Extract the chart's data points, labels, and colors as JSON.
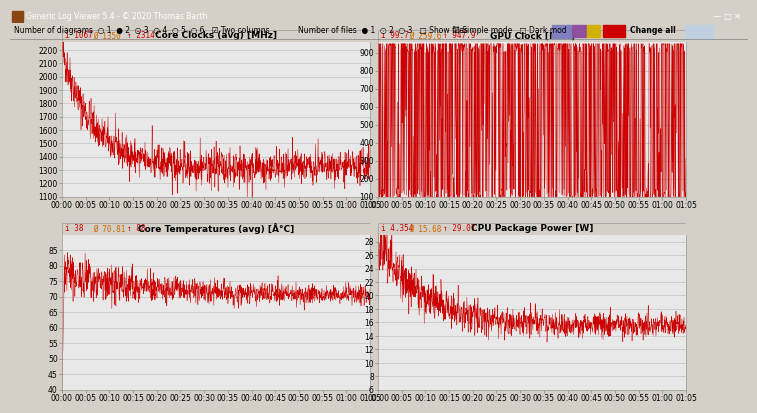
{
  "title_bar": "Generic Log Viewer 5.4 - © 2020 Thomas Barth",
  "plots": [
    {
      "title": "Core Clocks (avg) [MHz]",
      "stats_min": "i 1067",
      "stats_avg": "Ø 1350",
      "stats_max": "↑ 2314",
      "ylabel_ticks": [
        1100,
        1200,
        1300,
        1400,
        1500,
        1600,
        1700,
        1800,
        1900,
        2000,
        2100,
        2200
      ],
      "ymin": 1100,
      "ymax": 2260,
      "color": "#cc0000"
    },
    {
      "title": "GPU Clock [MHz]",
      "stats_min": "i 99.7",
      "stats_avg": "Ø 259.6",
      "stats_max": "↑ 947.9",
      "ylabel_ticks": [
        100,
        200,
        300,
        400,
        500,
        600,
        700,
        800,
        900
      ],
      "ymin": 100,
      "ymax": 960,
      "color": "#cc0000"
    },
    {
      "title": "Core Temperatures (avg) [Å°C]",
      "stats_min": "i 38",
      "stats_avg": "Ø 70.81",
      "stats_max": "↑ 88",
      "ylabel_ticks": [
        40,
        45,
        50,
        55,
        60,
        65,
        70,
        75,
        80,
        85
      ],
      "ymin": 40,
      "ymax": 90,
      "color": "#cc0000"
    },
    {
      "title": "CPU Package Power [W]",
      "stats_min": "i 4.354",
      "stats_avg": "Ø 15.68",
      "stats_max": "↑ 29.07",
      "ylabel_ticks": [
        6,
        8,
        10,
        12,
        14,
        16,
        18,
        20,
        22,
        24,
        26,
        28
      ],
      "ymin": 6,
      "ymax": 29,
      "color": "#cc0000"
    }
  ],
  "plot_bg": "#e8e8e8",
  "panel_header_bg": "#d4d0c8",
  "grid_color": "#c0c0c0",
  "line_color": "#cc0000",
  "title_color": "#000000",
  "window_bg": "#d4d0c8",
  "toolbar_bg": "#d4d0c8",
  "n_points": 1200,
  "duration_minutes": 65
}
